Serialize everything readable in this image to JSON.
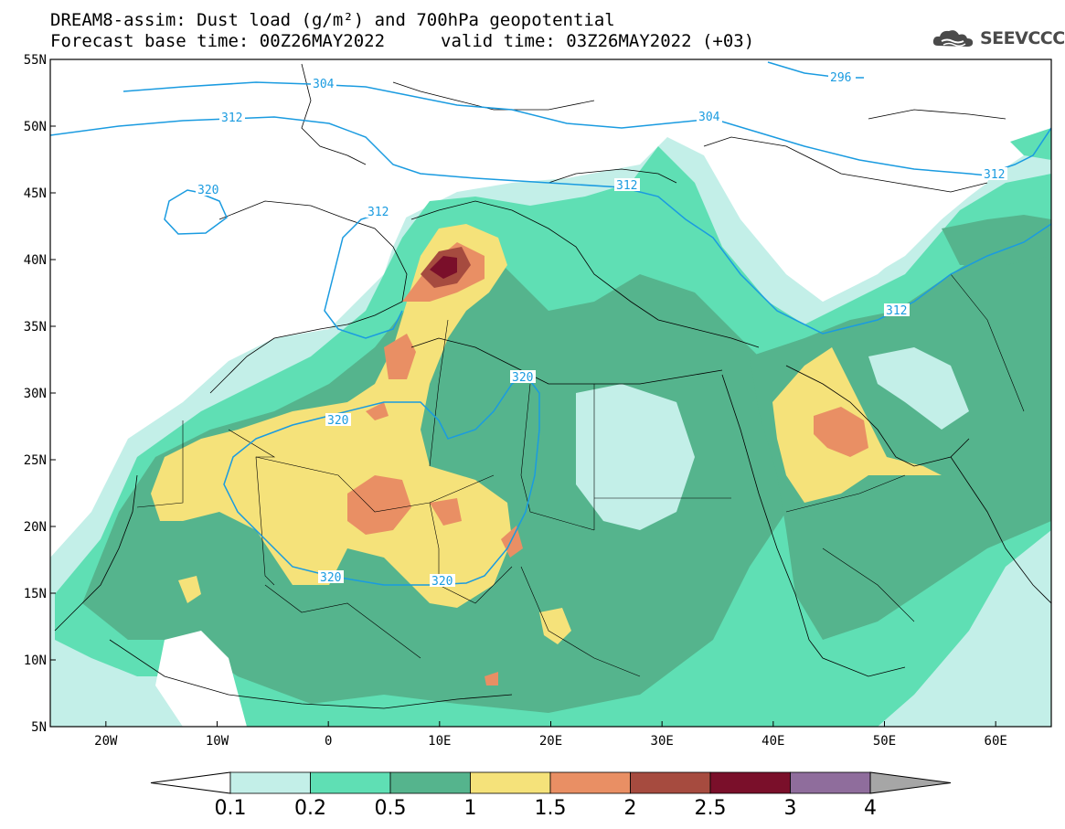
{
  "title": {
    "line1": "DREAM8-assim: Dust load (g/m²) and 700hPa geopotential",
    "line2": "Forecast base time: 00Z26MAY2022",
    "valid": "valid time: 03Z26MAY2022 (+03)"
  },
  "logo": {
    "icon": "cloud-icon",
    "text": "SEEVCCC"
  },
  "axes": {
    "lat_labels": [
      "55N",
      "50N",
      "45N",
      "40N",
      "35N",
      "30N",
      "25N",
      "20N",
      "15N",
      "10N",
      "5N"
    ],
    "lon_labels": [
      "20W",
      "10W",
      "0",
      "10E",
      "20E",
      "30E",
      "40E",
      "50E",
      "60E"
    ],
    "lat_range": [
      5,
      55
    ],
    "lon_range": [
      -25,
      65
    ]
  },
  "colorbar": {
    "labels": [
      "0.1",
      "0.2",
      "0.5",
      "1",
      "1.5",
      "2",
      "2.5",
      "3",
      "4"
    ],
    "colors": [
      "#c3efe8",
      "#5fdfb4",
      "#55b48d",
      "#f5e27a",
      "#e98f64",
      "#a64b3f",
      "#7a0f2a",
      "#8f6d9c",
      "#a6a6a6"
    ]
  },
  "contours": {
    "color": "#1a9be0",
    "labels": [
      "304",
      "296",
      "312",
      "304",
      "312",
      "312",
      "320",
      "320",
      "320",
      "320",
      "320",
      "312",
      "312"
    ]
  }
}
